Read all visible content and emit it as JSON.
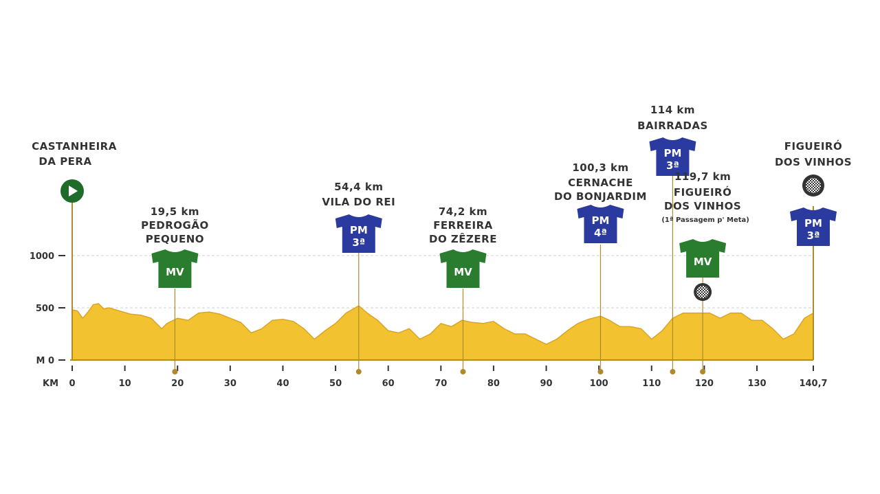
{
  "chart_data": {
    "type": "area",
    "title": "",
    "xlabel": "KM",
    "ylabel": "M",
    "xlim": [
      0,
      140.7
    ],
    "ylim": [
      0,
      1000
    ],
    "x_ticks": [
      0,
      10,
      20,
      30,
      40,
      50,
      60,
      70,
      80,
      90,
      100,
      110,
      120,
      130,
      140.7
    ],
    "x_tick_labels": [
      "0",
      "10",
      "20",
      "30",
      "40",
      "50",
      "60",
      "70",
      "80",
      "90",
      "100",
      "110",
      "120",
      "130",
      "140,7"
    ],
    "y_ticks": [
      0,
      500,
      1000
    ],
    "y_tick_labels": [
      "M 0",
      "500",
      "1000"
    ],
    "grid": "dashed horizontal at 500 and 1000",
    "fill_color": "#f2c230",
    "line_color": "#b08a2a",
    "series": [
      {
        "points": [
          [
            0,
            480
          ],
          [
            1,
            470
          ],
          [
            2,
            400
          ],
          [
            3,
            460
          ],
          [
            4,
            530
          ],
          [
            5,
            540
          ],
          [
            6,
            490
          ],
          [
            7,
            500
          ],
          [
            9,
            470
          ],
          [
            11,
            440
          ],
          [
            13,
            430
          ],
          [
            15,
            400
          ],
          [
            17,
            300
          ],
          [
            18,
            350
          ],
          [
            20,
            400
          ],
          [
            22,
            380
          ],
          [
            24,
            450
          ],
          [
            26,
            460
          ],
          [
            28,
            440
          ],
          [
            30,
            400
          ],
          [
            32,
            360
          ],
          [
            34,
            260
          ],
          [
            36,
            300
          ],
          [
            38,
            380
          ],
          [
            40,
            390
          ],
          [
            42,
            370
          ],
          [
            44,
            300
          ],
          [
            46,
            200
          ],
          [
            48,
            280
          ],
          [
            50,
            350
          ],
          [
            52,
            450
          ],
          [
            54.4,
            520
          ],
          [
            56,
            450
          ],
          [
            58,
            380
          ],
          [
            60,
            280
          ],
          [
            62,
            260
          ],
          [
            64,
            300
          ],
          [
            66,
            200
          ],
          [
            68,
            250
          ],
          [
            70,
            350
          ],
          [
            72,
            320
          ],
          [
            74,
            380
          ],
          [
            76,
            360
          ],
          [
            78,
            350
          ],
          [
            80,
            370
          ],
          [
            82,
            300
          ],
          [
            84,
            250
          ],
          [
            86,
            250
          ],
          [
            88,
            200
          ],
          [
            90,
            150
          ],
          [
            92,
            200
          ],
          [
            94,
            280
          ],
          [
            96,
            350
          ],
          [
            98,
            390
          ],
          [
            100.3,
            420
          ],
          [
            102,
            380
          ],
          [
            104,
            320
          ],
          [
            106,
            320
          ],
          [
            108,
            300
          ],
          [
            110,
            200
          ],
          [
            112,
            280
          ],
          [
            114,
            400
          ],
          [
            116,
            450
          ],
          [
            118,
            450
          ],
          [
            119.7,
            450
          ],
          [
            121,
            450
          ],
          [
            123,
            400
          ],
          [
            125,
            450
          ],
          [
            127,
            450
          ],
          [
            129,
            380
          ],
          [
            131,
            380
          ],
          [
            133,
            300
          ],
          [
            135,
            200
          ],
          [
            137,
            250
          ],
          [
            139,
            400
          ],
          [
            140.7,
            450
          ]
        ]
      }
    ],
    "points_of_interest": [
      {
        "km": 19.5,
        "km_label": "19,5 km",
        "name_lines": [
          "PEDROGÃO",
          "PEQUENO"
        ],
        "jersey": "MV",
        "jersey_cat": "",
        "color": "#2a7d2e"
      },
      {
        "km": 54.4,
        "km_label": "54,4 km",
        "name_lines": [
          "VILA DO REI"
        ],
        "jersey": "PM",
        "jersey_cat": "3ª",
        "color": "#2a3a9e"
      },
      {
        "km": 74.2,
        "km_label": "74,2 km",
        "name_lines": [
          "FERREIRA",
          "DO ZÊZERE"
        ],
        "jersey": "MV",
        "jersey_cat": "",
        "color": "#2a7d2e"
      },
      {
        "km": 100.3,
        "km_label": "100,3 km",
        "name_lines": [
          "CERNACHE",
          "DO BONJARDIM"
        ],
        "jersey": "PM",
        "jersey_cat": "4ª",
        "color": "#2a3a9e"
      },
      {
        "km": 114,
        "km_label": "114 km",
        "name_lines": [
          "BAIRRADAS"
        ],
        "jersey": "PM",
        "jersey_cat": "3ª",
        "color": "#2a3a9e"
      },
      {
        "km": 119.7,
        "km_label": "119,7 km",
        "name_lines": [
          "FIGUEIRÓ",
          "DOS VINHOS"
        ],
        "note": "(1ª Passagem p' Meta)",
        "jersey": "MV",
        "jersey_cat": "",
        "color": "#2a7d2e"
      }
    ],
    "start": {
      "name_lines": [
        "CASTANHEIRA",
        "DA PERA"
      ]
    },
    "finish": {
      "name_lines": [
        "FIGUEIRÓ",
        "DOS VINHOS"
      ],
      "jersey": "PM",
      "jersey_cat": "3ª",
      "color": "#2a3a9e"
    }
  }
}
